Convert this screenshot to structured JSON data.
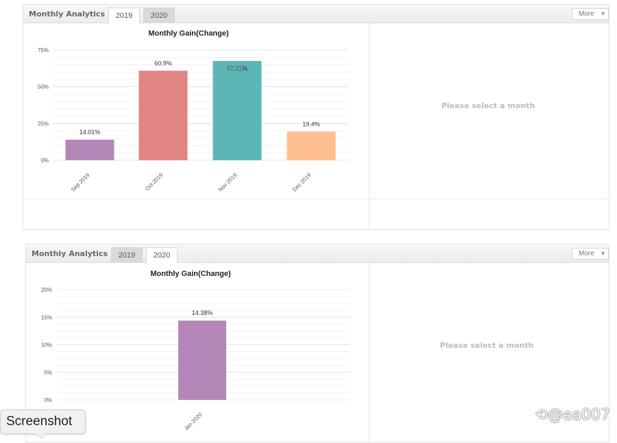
{
  "panels": [
    {
      "title": "Monthly Analytics",
      "tabs": [
        {
          "label": "2019",
          "active": true
        },
        {
          "label": "2020",
          "active": false
        }
      ],
      "more_label": "More",
      "empty_message": "Please select a month",
      "chart_data": {
        "type": "bar",
        "title": "Monthly Gain(Change)",
        "categories": [
          "Sep 2019",
          "Oct 2019",
          "Nov 2019",
          "Dec 2019"
        ],
        "values": [
          14.01,
          60.9,
          67.51,
          19.4
        ],
        "value_labels": [
          "14.01%",
          "60.9%",
          "67.51%",
          "19.4%"
        ],
        "colors": [
          "#b587b8",
          "#e08583",
          "#5cb6b8",
          "#ffbe8f"
        ],
        "ylim": [
          0,
          75
        ],
        "yticks": [
          "0%",
          "25%",
          "50%",
          "75%"
        ],
        "grid": true
      }
    },
    {
      "title": "Monthly Analytics",
      "tabs": [
        {
          "label": "2019",
          "active": false
        },
        {
          "label": "2020",
          "active": true
        }
      ],
      "more_label": "More",
      "empty_message": "Please select a month",
      "chart_data": {
        "type": "bar",
        "title": "Monthly Gain(Change)",
        "categories": [
          "Jan 2020"
        ],
        "values": [
          14.38
        ],
        "value_labels": [
          "14.38%"
        ],
        "colors": [
          "#b587b8"
        ],
        "ylim": [
          0,
          20
        ],
        "yticks": [
          "0%",
          "5%",
          "10%",
          "15%",
          "20%"
        ],
        "grid": true
      }
    }
  ],
  "tooltip": {
    "label": "Screenshot"
  },
  "watermark": "@ea007",
  "colors": {
    "grid": "#ededed",
    "axis_text": "#555555",
    "empty_text": "#bcbcbc"
  }
}
